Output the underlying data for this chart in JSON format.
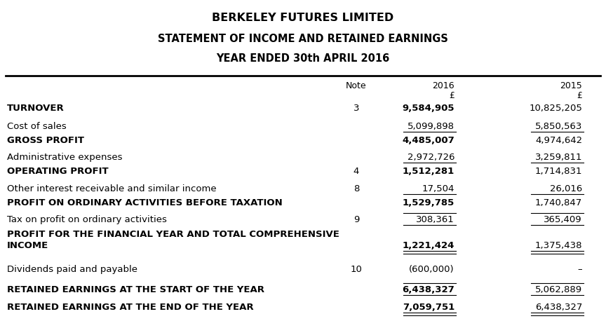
{
  "title1": "BERKELEY FUTURES LIMITED",
  "title2": "STATEMENT OF INCOME AND RETAINED EARNINGS",
  "title3": "YEAR ENDED 30th APRIL 2016",
  "bg_color": "#ffffff",
  "text_color": "#000000",
  "figsize": [
    8.64,
    4.78
  ],
  "dpi": 100,
  "rows": [
    {
      "label": "TURNOVER",
      "label2": "",
      "bold": true,
      "note": "3",
      "val2016": "9,584,905",
      "val2015": "10,825,205",
      "ul16": false,
      "ul15": false,
      "ul_above16": false,
      "ul_above15": false,
      "dbl": false,
      "gap_before": false
    },
    {
      "label": "Cost of sales",
      "label2": "",
      "bold": false,
      "note": "",
      "val2016": "5,099,898",
      "val2015": "5,850,563",
      "ul16": true,
      "ul15": true,
      "ul_above16": false,
      "ul_above15": false,
      "dbl": false,
      "gap_before": false
    },
    {
      "label": "GROSS PROFIT",
      "label2": "",
      "bold": true,
      "note": "",
      "val2016": "4,485,007",
      "val2015": "4,974,642",
      "ul16": false,
      "ul15": false,
      "ul_above16": false,
      "ul_above15": false,
      "dbl": false,
      "gap_before": false
    },
    {
      "label": "Administrative expenses",
      "label2": "",
      "bold": false,
      "note": "",
      "val2016": "2,972,726",
      "val2015": "3,259,811",
      "ul16": true,
      "ul15": true,
      "ul_above16": false,
      "ul_above15": false,
      "dbl": false,
      "gap_before": true
    },
    {
      "label": "OPERATING PROFIT",
      "label2": "",
      "bold": true,
      "note": "4",
      "val2016": "1,512,281",
      "val2015": "1,714,831",
      "ul16": false,
      "ul15": false,
      "ul_above16": false,
      "ul_above15": false,
      "dbl": false,
      "gap_before": false
    },
    {
      "label": "Other interest receivable and similar income",
      "label2": "",
      "bold": false,
      "note": "8",
      "val2016": "17,504",
      "val2015": "26,016",
      "ul16": true,
      "ul15": true,
      "ul_above16": false,
      "ul_above15": false,
      "dbl": false,
      "gap_before": true
    },
    {
      "label": "PROFIT ON ORDINARY ACTIVITIES BEFORE TAXATION",
      "label2": "",
      "bold": true,
      "note": "",
      "val2016": "1,529,785",
      "val2015": "1,740,847",
      "ul16": false,
      "ul15": false,
      "ul_above16": false,
      "ul_above15": false,
      "dbl": false,
      "gap_before": false
    },
    {
      "label": "Tax on profit on ordinary activities",
      "label2": "",
      "bold": false,
      "note": "9",
      "val2016": "308,361",
      "val2015": "365,409",
      "ul16": true,
      "ul15": true,
      "ul_above16": true,
      "ul_above15": true,
      "dbl": false,
      "gap_before": true
    },
    {
      "label": "PROFIT FOR THE FINANCIAL YEAR AND TOTAL COMPREHENSIVE",
      "label2": "INCOME",
      "bold": true,
      "note": "",
      "val2016": "1,221,424",
      "val2015": "1,375,438",
      "ul16": true,
      "ul15": true,
      "ul_above16": false,
      "ul_above15": false,
      "dbl": true,
      "gap_before": false
    },
    {
      "label": "Dividends paid and payable",
      "label2": "",
      "bold": false,
      "note": "10",
      "val2016": "(600,000)",
      "val2015": "–",
      "ul16": false,
      "ul15": false,
      "ul_above16": false,
      "ul_above15": false,
      "dbl": false,
      "gap_before": true
    },
    {
      "label": "RETAINED EARNINGS AT THE START OF THE YEAR",
      "label2": "",
      "bold": true,
      "note": "",
      "val2016": "6,438,327",
      "val2015": "5,062,889",
      "ul16": true,
      "ul15": true,
      "ul_above16": true,
      "ul_above15": true,
      "dbl": false,
      "gap_before": true
    },
    {
      "label": "RETAINED EARNINGS AT THE END OF THE YEAR",
      "label2": "",
      "bold": true,
      "note": "",
      "val2016": "7,059,751",
      "val2015": "6,438,327",
      "ul16": true,
      "ul15": true,
      "ul_above16": false,
      "ul_above15": false,
      "dbl": true,
      "gap_before": false
    }
  ]
}
